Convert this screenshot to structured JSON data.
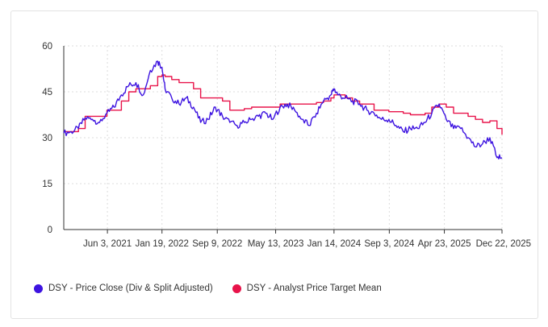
{
  "chart_data": {
    "type": "line",
    "ylim": [
      0,
      60
    ],
    "yticks": [
      "0",
      "15",
      "30",
      "45",
      "60"
    ],
    "xlim": [
      "2020-12-01",
      "2025-12-22"
    ],
    "xticks": [
      {
        "date": "2021-06-03",
        "label": "Jun 3, 2021"
      },
      {
        "date": "2022-01-19",
        "label": "Jan 19, 2022"
      },
      {
        "date": "2022-09-09",
        "label": "Sep 9, 2022"
      },
      {
        "date": "2023-05-13",
        "label": "May 13, 2023"
      },
      {
        "date": "2024-01-14",
        "label": "Jan 14, 2024"
      },
      {
        "date": "2024-09-03",
        "label": "Sep 3, 2024"
      },
      {
        "date": "2025-04-23",
        "label": "Apr 23, 2025"
      },
      {
        "date": "2025-12-22",
        "label": "Dec 22, 2025"
      }
    ],
    "grid": true,
    "legend_position": "bottom-left",
    "series": [
      {
        "name": "DSY - Price Close (Div & Split Adjusted)",
        "color": "#3d13e0",
        "x": [
          "2020-12-01",
          "2021-01-01",
          "2021-02-01",
          "2021-03-01",
          "2021-04-01",
          "2021-05-01",
          "2021-06-01",
          "2021-07-01",
          "2021-08-01",
          "2021-09-01",
          "2021-10-01",
          "2021-11-01",
          "2021-12-01",
          "2022-01-01",
          "2022-01-19",
          "2022-02-01",
          "2022-03-01",
          "2022-04-01",
          "2022-05-01",
          "2022-06-01",
          "2022-07-01",
          "2022-08-01",
          "2022-09-01",
          "2022-10-01",
          "2022-11-01",
          "2022-12-01",
          "2023-01-01",
          "2023-02-01",
          "2023-03-01",
          "2023-04-01",
          "2023-05-01",
          "2023-06-01",
          "2023-07-01",
          "2023-08-01",
          "2023-09-01",
          "2023-10-01",
          "2023-11-01",
          "2023-12-01",
          "2024-01-01",
          "2024-01-14",
          "2024-02-01",
          "2024-03-01",
          "2024-04-01",
          "2024-05-01",
          "2024-06-01",
          "2024-07-01",
          "2024-08-01",
          "2024-09-01",
          "2024-10-01",
          "2024-11-01",
          "2024-12-01",
          "2025-01-01",
          "2025-02-01",
          "2025-03-01",
          "2025-04-01",
          "2025-05-01",
          "2025-06-01",
          "2025-07-01",
          "2025-08-01",
          "2025-09-01",
          "2025-10-01",
          "2025-11-01",
          "2025-12-01",
          "2025-12-22"
        ],
        "values": [
          31.5,
          32,
          33,
          36.5,
          36,
          35,
          38,
          40,
          44,
          47,
          48,
          44,
          52,
          55,
          53,
          46,
          43,
          41,
          43,
          40,
          35,
          36,
          40,
          37,
          35,
          34,
          35,
          36,
          37,
          38,
          36,
          40,
          41,
          39,
          36,
          34,
          38,
          42,
          44,
          46,
          44,
          43,
          42,
          41,
          39,
          38,
          36,
          36,
          34,
          32,
          33,
          33,
          35,
          38,
          41,
          36,
          33,
          33,
          30,
          27,
          28,
          30,
          23.5,
          23.5
        ]
      },
      {
        "name": "DSY - Analyst Price Target Mean",
        "color": "#e8134a",
        "x": [
          "2020-12-01",
          "2021-01-01",
          "2021-02-01",
          "2021-03-01",
          "2021-04-01",
          "2021-05-01",
          "2021-06-01",
          "2021-07-01",
          "2021-08-01",
          "2021-09-01",
          "2021-10-01",
          "2021-11-01",
          "2021-12-01",
          "2022-01-01",
          "2022-01-19",
          "2022-02-01",
          "2022-03-01",
          "2022-04-01",
          "2022-05-01",
          "2022-06-01",
          "2022-07-01",
          "2022-08-01",
          "2022-09-01",
          "2022-10-01",
          "2022-11-01",
          "2022-12-01",
          "2023-01-01",
          "2023-02-01",
          "2023-03-01",
          "2023-04-01",
          "2023-05-01",
          "2023-06-01",
          "2023-07-01",
          "2023-08-01",
          "2023-09-01",
          "2023-10-01",
          "2023-11-01",
          "2023-12-01",
          "2024-01-01",
          "2024-01-14",
          "2024-02-01",
          "2024-03-01",
          "2024-04-01",
          "2024-05-01",
          "2024-06-01",
          "2024-07-01",
          "2024-08-01",
          "2024-09-01",
          "2024-10-01",
          "2024-11-01",
          "2024-12-01",
          "2025-01-01",
          "2025-02-01",
          "2025-03-01",
          "2025-04-01",
          "2025-05-01",
          "2025-06-01",
          "2025-07-01",
          "2025-08-01",
          "2025-09-01",
          "2025-10-01",
          "2025-11-01",
          "2025-12-01",
          "2025-12-22"
        ],
        "values": [
          32,
          32,
          33,
          37,
          37,
          37,
          39,
          39,
          42,
          45,
          46,
          46,
          47,
          50,
          50.5,
          50,
          49,
          48,
          48,
          46,
          43,
          43,
          43,
          42,
          39,
          39,
          39.5,
          40,
          40,
          40,
          40,
          41,
          41,
          41,
          41,
          41,
          41.5,
          42,
          43,
          44,
          44,
          43,
          42,
          41,
          41,
          39,
          39,
          38.5,
          38.5,
          38,
          37.5,
          37.5,
          38,
          40,
          41,
          40,
          38,
          38,
          37,
          36,
          35,
          35.5,
          33,
          31
        ]
      }
    ]
  }
}
